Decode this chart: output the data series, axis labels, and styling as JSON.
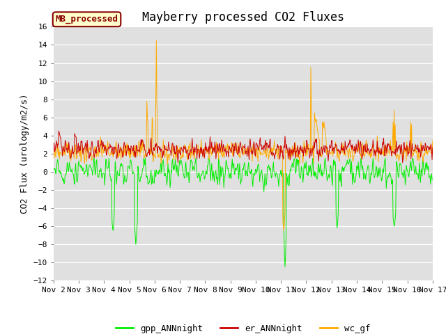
{
  "title": "Mayberry processed CO2 Fluxes",
  "ylabel": "CO2 Flux (urology/m2/s)",
  "xlabel": "",
  "ylim": [
    -12,
    16
  ],
  "yticks": [
    -12,
    -10,
    -8,
    -6,
    -4,
    -2,
    0,
    2,
    4,
    6,
    8,
    10,
    12,
    14,
    16
  ],
  "xtick_labels": [
    "Nov 2",
    "Nov 3",
    "Nov 4",
    "Nov 5",
    "Nov 6",
    "Nov 7",
    "Nov 8",
    "Nov 9",
    "Nov 10",
    "Nov 11",
    "Nov 12",
    "Nov 13",
    "Nov 14",
    "Nov 15",
    "Nov 16",
    "Nov 17"
  ],
  "colors": {
    "gpp_ANNnight": "#00ee00",
    "er_ANNnight": "#cc0000",
    "wc_gf": "#ffaa00"
  },
  "linewidth": 0.7,
  "background_color": "#e0e0e0",
  "annotation_text": "MB_processed",
  "annotation_bg": "#ffffcc",
  "annotation_border": "#880000",
  "annotation_text_color": "#880000",
  "title_fontsize": 12,
  "axis_fontsize": 9,
  "tick_fontsize": 8,
  "legend_fontsize": 9
}
